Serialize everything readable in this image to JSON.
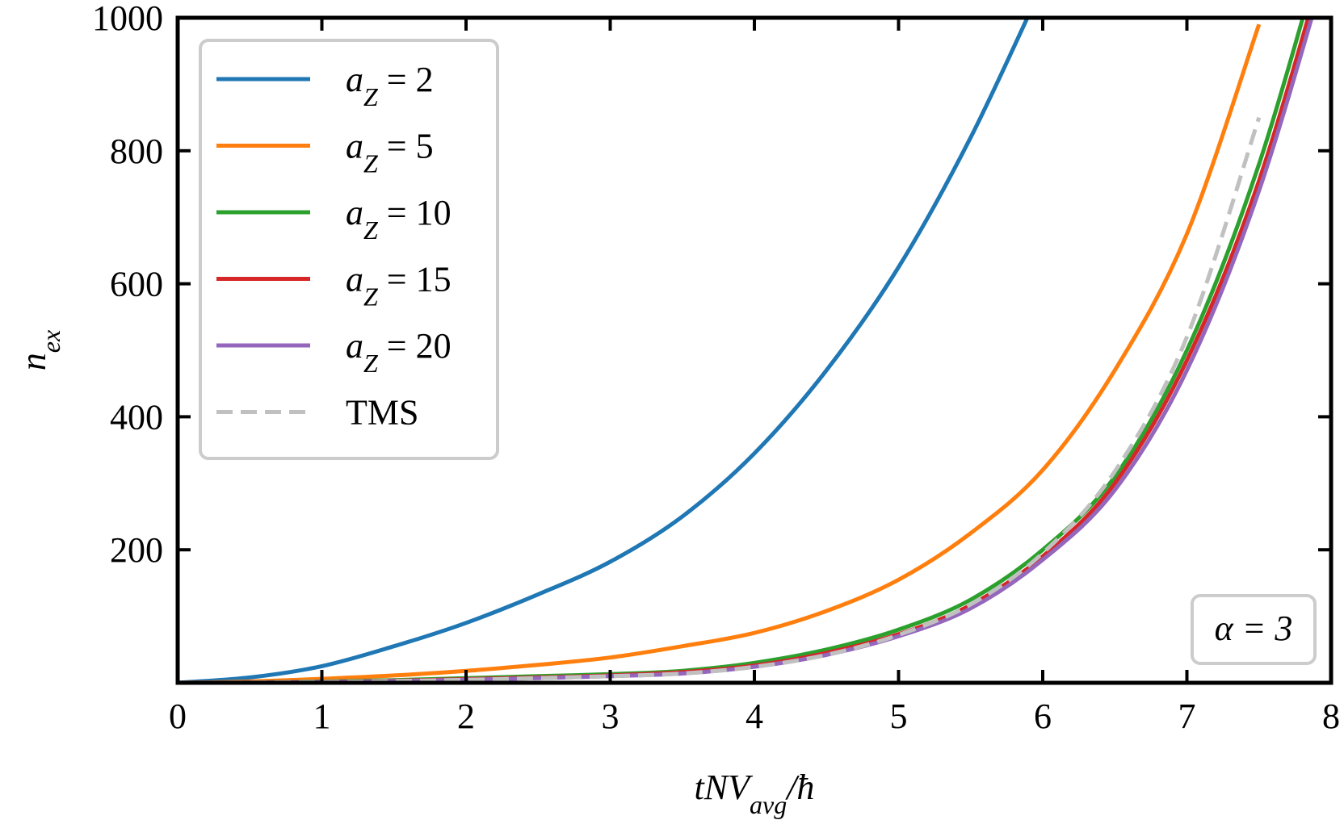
{
  "chart_data": {
    "type": "line",
    "title": "",
    "xlabel": "tNV_avg/ħ",
    "xlabel_parts": {
      "main": "tNV",
      "sub": "avg",
      "tail": "/ħ"
    },
    "ylabel": "n_ex",
    "ylabel_parts": {
      "main": "n",
      "sub": "ex"
    },
    "xlim": [
      0,
      8
    ],
    "ylim": [
      0,
      1000
    ],
    "x_ticks": [
      0,
      1,
      2,
      3,
      4,
      5,
      6,
      7,
      8
    ],
    "y_ticks": [
      200,
      400,
      600,
      800,
      1000
    ],
    "grid": false,
    "legend_position": "top-left",
    "annotation": {
      "text": "α = 3",
      "position": "bottom-right"
    },
    "x": [
      0,
      0.5,
      1,
      1.5,
      2,
      2.5,
      3,
      3.5,
      4,
      4.5,
      5,
      5.5,
      6,
      6.5,
      7,
      7.5,
      8
    ],
    "series": [
      {
        "name": "a_Z = 2",
        "legend_main": "a",
        "legend_sub": "Z",
        "legend_tail": " = 2",
        "color": "#1f77b4",
        "dash": "solid",
        "values": [
          0,
          8,
          25,
          55,
          90,
          133,
          182,
          250,
          345,
          470,
          625,
          820,
          1050,
          null,
          null,
          null,
          null
        ]
      },
      {
        "name": "a_Z = 5",
        "legend_main": "a",
        "legend_sub": "Z",
        "legend_tail": " = 5",
        "color": "#ff7f0e",
        "dash": "solid",
        "values": [
          0,
          2,
          6,
          11,
          18,
          27,
          38,
          55,
          75,
          108,
          155,
          225,
          320,
          470,
          675,
          990,
          null
        ]
      },
      {
        "name": "a_Z = 10",
        "legend_main": "a",
        "legend_sub": "Z",
        "legend_tail": " = 10",
        "color": "#2ca02c",
        "dash": "solid",
        "values": [
          0,
          0.5,
          2,
          4,
          7,
          10,
          13,
          18,
          30,
          50,
          80,
          125,
          200,
          310,
          500,
          780,
          1150
        ]
      },
      {
        "name": "a_Z = 15",
        "legend_main": "a",
        "legend_sub": "Z",
        "legend_tail": " = 15",
        "color": "#d62728",
        "dash": "solid",
        "values": [
          0,
          0.4,
          1.5,
          3,
          5.5,
          8,
          11,
          16,
          26,
          45,
          73,
          117,
          190,
          300,
          485,
          755,
          1120
        ]
      },
      {
        "name": "a_Z = 20",
        "legend_main": "a",
        "legend_sub": "Z",
        "legend_tail": " = 20",
        "color": "#9467bd",
        "dash": "solid",
        "values": [
          0,
          0.3,
          1.2,
          2.5,
          4.5,
          7,
          10,
          14,
          24,
          42,
          70,
          112,
          185,
          290,
          470,
          740,
          1100
        ]
      },
      {
        "name": "TMS",
        "legend_main": "TMS",
        "legend_sub": "",
        "legend_tail": "",
        "color": "#c0c0c0",
        "dash": "dashed",
        "values": [
          0,
          0.3,
          1.2,
          2.5,
          4.5,
          7,
          10,
          14,
          24,
          42,
          72,
          118,
          195,
          318,
          520,
          850,
          null
        ]
      }
    ]
  }
}
